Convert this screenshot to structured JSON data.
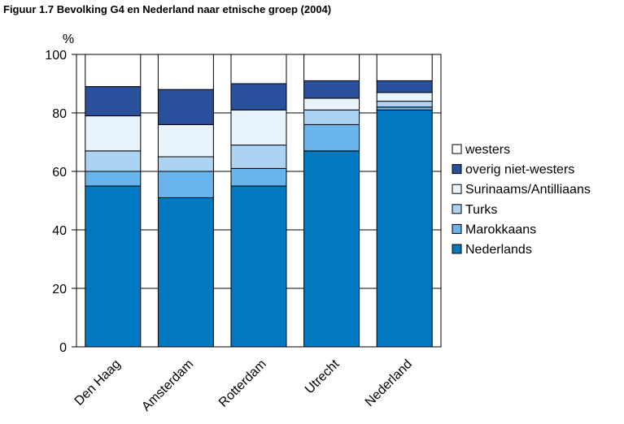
{
  "title": "Figuur 1.7 Bevolking G4 en Nederland naar etnische groep (2004)",
  "chart_data": {
    "type": "bar",
    "stacked": true,
    "unit_label": "%",
    "categories": [
      "Den Haag",
      "Amsterdam",
      "Rotterdam",
      "Utrecht",
      "Nederland"
    ],
    "ylim": [
      0,
      100
    ],
    "yticks": [
      0,
      20,
      40,
      60,
      80,
      100
    ],
    "grid": true,
    "legend_position": "right",
    "series": [
      {
        "name": "Nederlands",
        "color": "#0079C1",
        "values": [
          55,
          51,
          55,
          67,
          81
        ]
      },
      {
        "name": "Marokkaans",
        "color": "#69B4EA",
        "values": [
          5,
          9,
          6,
          9,
          1
        ]
      },
      {
        "name": "Turks",
        "color": "#ADD3F3",
        "values": [
          7,
          5,
          8,
          5,
          2
        ]
      },
      {
        "name": "Surinaams/Antilliaans",
        "color": "#E8F3FB",
        "values": [
          12,
          11,
          12,
          4,
          3
        ]
      },
      {
        "name": "overig niet-westers",
        "color": "#2A4F9B",
        "values": [
          10,
          12,
          9,
          6,
          4
        ]
      },
      {
        "name": "westers",
        "color": "#FFFFFF",
        "values": [
          11,
          12,
          10,
          9,
          9
        ]
      }
    ]
  }
}
